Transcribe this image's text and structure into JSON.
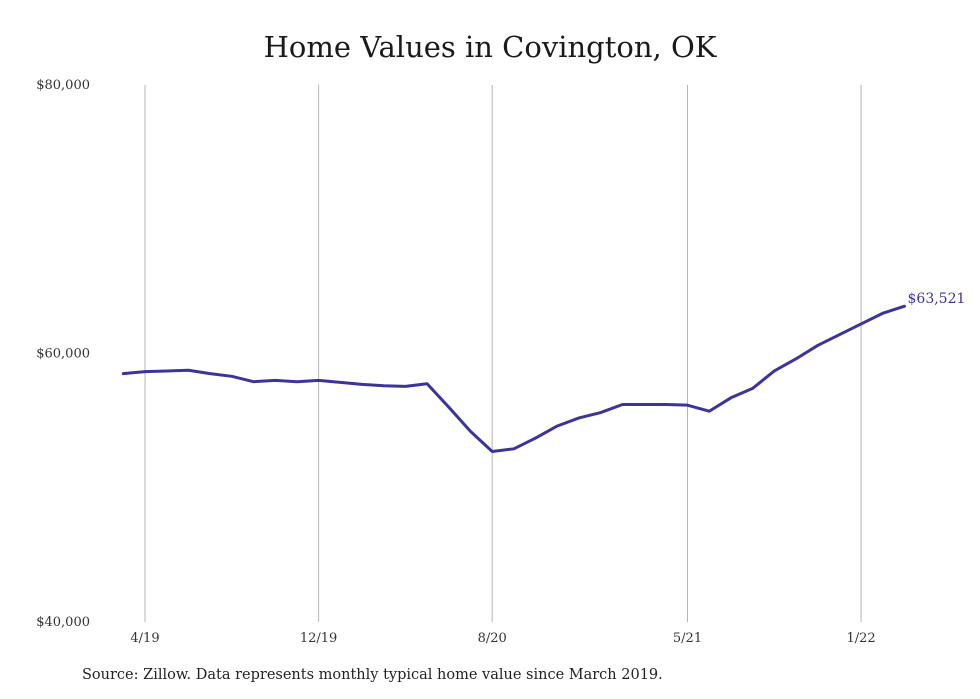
{
  "chart_data": {
    "type": "line",
    "title": "Home Values in Covington, OK",
    "xlabel": "",
    "ylabel": "",
    "ylim": [
      40000,
      80000
    ],
    "y_ticks": [
      "$80,000",
      "$60,000",
      "$40,000"
    ],
    "y_tick_values": [
      80000,
      60000,
      40000
    ],
    "x_ticks": [
      "4/19",
      "12/19",
      "8/20",
      "5/21",
      "1/22"
    ],
    "x_tick_months": [
      1,
      9,
      17,
      26,
      34
    ],
    "grid": "vertical",
    "line_color": "#3b3499",
    "x": [
      "3/19",
      "4/19",
      "5/19",
      "6/19",
      "7/19",
      "8/19",
      "9/19",
      "10/19",
      "11/19",
      "12/19",
      "1/20",
      "2/20",
      "3/20",
      "4/20",
      "5/20",
      "6/20",
      "7/20",
      "8/20",
      "9/20",
      "10/20",
      "11/20",
      "12/20",
      "1/21",
      "2/21",
      "3/21",
      "4/21",
      "5/21",
      "6/21",
      "7/21",
      "8/21",
      "9/21",
      "10/21",
      "11/21",
      "12/21",
      "1/22",
      "2/22",
      "3/22"
    ],
    "values": [
      58500,
      58650,
      58700,
      58750,
      58500,
      58300,
      57900,
      58000,
      57900,
      58000,
      57850,
      57700,
      57600,
      57550,
      57750,
      56000,
      54200,
      52700,
      52900,
      53700,
      54600,
      55200,
      55600,
      56200,
      56200,
      56200,
      56150,
      55700,
      56700,
      57400,
      58700,
      59600,
      60600,
      61400,
      62200,
      63000,
      63521
    ],
    "end_label": "$63,521"
  },
  "source_note": "Source: Zillow. Data represents monthly typical home value since March 2019."
}
